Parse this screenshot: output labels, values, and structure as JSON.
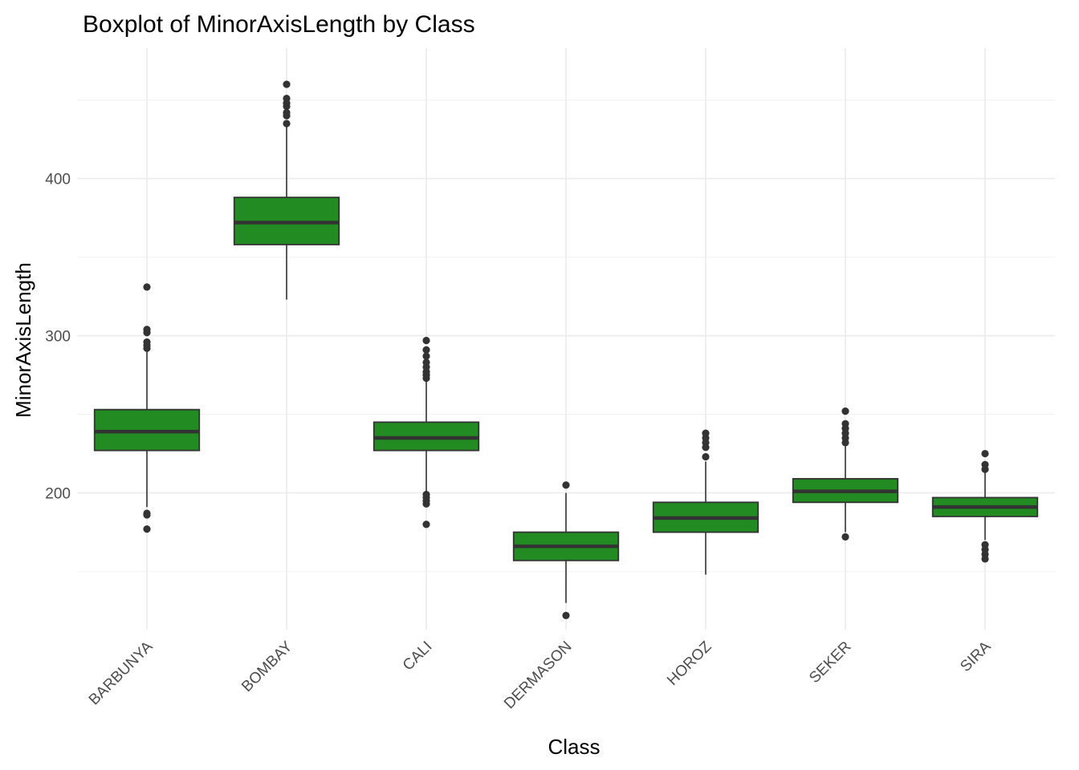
{
  "chart_data": {
    "type": "boxplot",
    "title": "Boxplot of MinorAxisLength by Class",
    "xlabel": "Class",
    "ylabel": "MinorAxisLength",
    "ylim": [
      113,
      483
    ],
    "yticks": [
      200,
      300,
      400
    ],
    "ytick_labels": [
      "200",
      "300",
      "400"
    ],
    "grid": true,
    "colors": {
      "box_fill": "#228B22",
      "box_line": "#333333",
      "outlier": "#333333"
    },
    "categories": [
      "BARBUNYA",
      "BOMBAY",
      "CALI",
      "DERMASON",
      "HOROZ",
      "SEKER",
      "SIRA"
    ],
    "boxes": [
      {
        "class": "BARBUNYA",
        "lower_whisker": 191,
        "q1": 227,
        "median": 239,
        "q3": 253,
        "upper_whisker": 290,
        "outliers": [
          177,
          186,
          187,
          292,
          294,
          296,
          302,
          304,
          331
        ]
      },
      {
        "class": "BOMBAY",
        "lower_whisker": 323,
        "q1": 358,
        "median": 372,
        "q3": 388,
        "upper_whisker": 433,
        "outliers": [
          435,
          440,
          442,
          446,
          448,
          451,
          460
        ]
      },
      {
        "class": "CALI",
        "lower_whisker": 201,
        "q1": 227,
        "median": 235,
        "q3": 245,
        "upper_whisker": 271,
        "outliers": [
          180,
          193,
          195,
          197,
          199,
          273,
          275,
          277,
          280,
          283,
          287,
          291,
          297
        ]
      },
      {
        "class": "DERMASON",
        "lower_whisker": 130,
        "q1": 157,
        "median": 166,
        "q3": 175,
        "upper_whisker": 200,
        "outliers": [
          122,
          205
        ]
      },
      {
        "class": "HOROZ",
        "lower_whisker": 148,
        "q1": 175,
        "median": 184,
        "q3": 194,
        "upper_whisker": 220,
        "outliers": [
          223,
          229,
          232,
          235,
          238
        ]
      },
      {
        "class": "SEKER",
        "lower_whisker": 175,
        "q1": 194,
        "median": 201,
        "q3": 209,
        "upper_whisker": 230,
        "outliers": [
          172,
          232,
          235,
          238,
          241,
          244,
          252
        ]
      },
      {
        "class": "SIRA",
        "lower_whisker": 170,
        "q1": 185,
        "median": 191,
        "q3": 197,
        "upper_whisker": 213,
        "outliers": [
          158,
          161,
          164,
          167,
          215,
          218,
          225
        ]
      }
    ]
  }
}
